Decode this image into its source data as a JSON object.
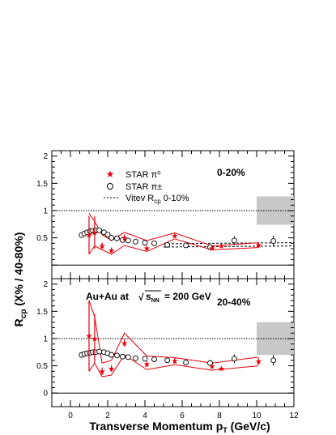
{
  "chart_data": {
    "type": "scatter",
    "xlabel": "Transverse Momentum p",
    "xlabel_sub": "T",
    "xlabel_unit": " (GeV/c)",
    "ylabel_main": "R",
    "ylabel_sub": "cp",
    "ylabel_rest": " (X% / 40-80%)",
    "xlim": [
      -1,
      12
    ],
    "ylim": [
      -0.25,
      2.1
    ],
    "x_ticks": [
      "0",
      "2",
      "4",
      "6",
      "8",
      "10",
      "12"
    ],
    "y_ticks": [
      "0",
      "0.5",
      "1",
      "1.5",
      "2"
    ],
    "legend": {
      "star_pi0": "STAR π⁰",
      "star_pipm": "STAR π±",
      "vitev_main": "Vitev R",
      "vitev_sub": "cp",
      "vitev_rest": " 0-10%"
    },
    "collision_label": "Au+Au at",
    "collision_energy": "= 200 GeV",
    "sqrt_sym": "√",
    "sqrt_s": "s",
    "sqrt_sub": "NN",
    "colors": {
      "pi0": "#e8000b",
      "pipm": "#000000",
      "band": "#c8c8c8",
      "theory": "#000000"
    },
    "panels": [
      {
        "label": "0-20%",
        "reference_line": 1.0,
        "norm_box": {
          "x": [
            10.0,
            12.0
          ],
          "y": [
            0.74,
            1.26
          ]
        },
        "pi0": [
          {
            "x": 1.0,
            "y": 0.55,
            "err": 0.35
          },
          {
            "x": 1.3,
            "y": 0.6,
            "err": 0.3
          },
          {
            "x": 1.7,
            "y": 0.35,
            "err": 0.06
          },
          {
            "x": 2.2,
            "y": 0.27,
            "err": 0.05
          },
          {
            "x": 2.9,
            "y": 0.5,
            "err": 0.06
          },
          {
            "x": 4.1,
            "y": 0.31,
            "err": 0.04
          },
          {
            "x": 5.6,
            "y": 0.54,
            "err": 0.04
          },
          {
            "x": 7.6,
            "y": 0.31,
            "err": 0.04
          },
          {
            "x": 8.1,
            "y": 0.35,
            "err": 0.03
          },
          {
            "x": 10.1,
            "y": 0.37,
            "err": 0.05
          }
        ],
        "pi0_band_upper": [
          [
            1.0,
            0.95
          ],
          [
            1.3,
            0.8
          ],
          [
            1.7,
            0.56
          ],
          [
            2.2,
            0.45
          ],
          [
            2.9,
            0.6
          ],
          [
            4.1,
            0.45
          ],
          [
            5.6,
            0.59
          ],
          [
            7.6,
            0.35
          ],
          [
            10.1,
            0.41
          ]
        ],
        "pi0_band_lower": [
          [
            1.0,
            0.2
          ],
          [
            1.3,
            0.35
          ],
          [
            1.7,
            0.28
          ],
          [
            2.2,
            0.2
          ],
          [
            2.9,
            0.36
          ],
          [
            4.1,
            0.25
          ],
          [
            5.6,
            0.48
          ],
          [
            7.6,
            0.28
          ],
          [
            10.1,
            0.32
          ]
        ],
        "pipm": [
          {
            "x": 0.6,
            "y": 0.55,
            "err": 0.02
          },
          {
            "x": 0.75,
            "y": 0.58,
            "err": 0.02
          },
          {
            "x": 0.9,
            "y": 0.6,
            "err": 0.02
          },
          {
            "x": 1.05,
            "y": 0.62,
            "err": 0.02
          },
          {
            "x": 1.2,
            "y": 0.63,
            "err": 0.02
          },
          {
            "x": 1.35,
            "y": 0.63,
            "err": 0.02
          },
          {
            "x": 1.55,
            "y": 0.64,
            "err": 0.02
          },
          {
            "x": 1.8,
            "y": 0.6,
            "err": 0.03
          },
          {
            "x": 2.0,
            "y": 0.56,
            "err": 0.03
          },
          {
            "x": 2.2,
            "y": 0.5,
            "err": 0.03
          },
          {
            "x": 2.5,
            "y": 0.49,
            "err": 0.03
          },
          {
            "x": 2.8,
            "y": 0.46,
            "err": 0.03
          },
          {
            "x": 3.1,
            "y": 0.45,
            "err": 0.03
          },
          {
            "x": 3.5,
            "y": 0.43,
            "err": 0.03
          },
          {
            "x": 4.0,
            "y": 0.41,
            "err": 0.03
          },
          {
            "x": 4.5,
            "y": 0.4,
            "err": 0.03
          },
          {
            "x": 5.2,
            "y": 0.37,
            "err": 0.04
          },
          {
            "x": 6.2,
            "y": 0.36,
            "err": 0.04
          },
          {
            "x": 7.5,
            "y": 0.33,
            "err": 0.05
          },
          {
            "x": 8.8,
            "y": 0.45,
            "err": 0.08
          },
          {
            "x": 10.9,
            "y": 0.44,
            "err": 0.1
          }
        ],
        "theory_upper": [
          [
            5.0,
            0.39
          ],
          [
            8.0,
            0.4
          ],
          [
            12.0,
            0.41
          ]
        ],
        "theory_lower": [
          [
            5.0,
            0.33
          ],
          [
            8.0,
            0.34
          ],
          [
            12.0,
            0.35
          ]
        ]
      },
      {
        "label": "20-40%",
        "reference_line": 1.0,
        "norm_box": {
          "x": [
            10.0,
            12.0
          ],
          "y": [
            0.7,
            1.3
          ]
        },
        "pi0": [
          {
            "x": 1.0,
            "y": 1.05,
            "err": 0.65
          },
          {
            "x": 1.3,
            "y": 1.0,
            "err": 0.45
          },
          {
            "x": 1.7,
            "y": 0.4,
            "err": 0.07
          },
          {
            "x": 2.2,
            "y": 0.45,
            "err": 0.06
          },
          {
            "x": 2.9,
            "y": 0.92,
            "err": 0.07
          },
          {
            "x": 4.1,
            "y": 0.53,
            "err": 0.05
          },
          {
            "x": 5.6,
            "y": 0.59,
            "err": 0.05
          },
          {
            "x": 7.6,
            "y": 0.49,
            "err": 0.04
          },
          {
            "x": 8.1,
            "y": 0.45,
            "err": 0.03
          },
          {
            "x": 10.1,
            "y": 0.58,
            "err": 0.06
          }
        ],
        "pi0_band_upper": [
          [
            1.0,
            1.7
          ],
          [
            1.3,
            1.4
          ],
          [
            1.7,
            0.55
          ],
          [
            2.2,
            0.6
          ],
          [
            2.9,
            1.1
          ],
          [
            4.1,
            0.68
          ],
          [
            5.6,
            0.65
          ],
          [
            7.6,
            0.55
          ],
          [
            10.1,
            0.66
          ]
        ],
        "pi0_band_lower": [
          [
            1.0,
            0.4
          ],
          [
            1.3,
            0.55
          ],
          [
            1.7,
            0.3
          ],
          [
            2.2,
            0.33
          ],
          [
            2.9,
            0.7
          ],
          [
            4.1,
            0.43
          ],
          [
            5.6,
            0.52
          ],
          [
            7.6,
            0.42
          ],
          [
            10.1,
            0.5
          ]
        ],
        "pipm": [
          {
            "x": 0.6,
            "y": 0.7,
            "err": 0.02
          },
          {
            "x": 0.75,
            "y": 0.72,
            "err": 0.02
          },
          {
            "x": 0.9,
            "y": 0.73,
            "err": 0.02
          },
          {
            "x": 1.05,
            "y": 0.74,
            "err": 0.02
          },
          {
            "x": 1.2,
            "y": 0.75,
            "err": 0.02
          },
          {
            "x": 1.35,
            "y": 0.75,
            "err": 0.02
          },
          {
            "x": 1.55,
            "y": 0.76,
            "err": 0.02
          },
          {
            "x": 1.8,
            "y": 0.75,
            "err": 0.03
          },
          {
            "x": 2.0,
            "y": 0.73,
            "err": 0.03
          },
          {
            "x": 2.2,
            "y": 0.7,
            "err": 0.03
          },
          {
            "x": 2.5,
            "y": 0.69,
            "err": 0.03
          },
          {
            "x": 2.8,
            "y": 0.67,
            "err": 0.03
          },
          {
            "x": 3.1,
            "y": 0.66,
            "err": 0.03
          },
          {
            "x": 3.5,
            "y": 0.64,
            "err": 0.03
          },
          {
            "x": 4.0,
            "y": 0.63,
            "err": 0.03
          },
          {
            "x": 4.5,
            "y": 0.62,
            "err": 0.03
          },
          {
            "x": 5.2,
            "y": 0.6,
            "err": 0.04
          },
          {
            "x": 6.2,
            "y": 0.56,
            "err": 0.05
          },
          {
            "x": 7.5,
            "y": 0.55,
            "err": 0.06
          },
          {
            "x": 8.8,
            "y": 0.63,
            "err": 0.08
          },
          {
            "x": 10.9,
            "y": 0.6,
            "err": 0.1
          }
        ],
        "theory_upper": [],
        "theory_lower": []
      }
    ]
  }
}
